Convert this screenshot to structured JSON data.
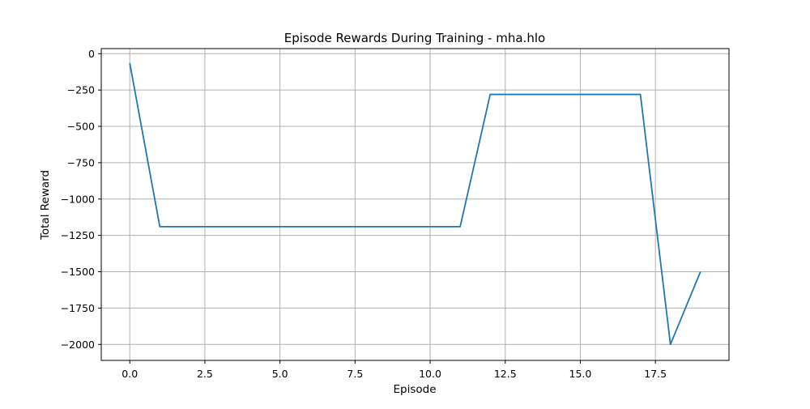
{
  "chart_data": {
    "type": "line",
    "title": "Episode Rewards During Training - mha.hlo",
    "xlabel": "Episode",
    "ylabel": "Total Reward",
    "xlim": [
      -0.95,
      19.95
    ],
    "ylim": [
      -2110,
      35
    ],
    "xticks": [
      0.0,
      2.5,
      5.0,
      7.5,
      10.0,
      12.5,
      15.0,
      17.5
    ],
    "xtick_labels": [
      "0.0",
      "2.5",
      "5.0",
      "7.5",
      "10.0",
      "12.5",
      "15.0",
      "17.5"
    ],
    "yticks": [
      0,
      -250,
      -500,
      -750,
      -1000,
      -1250,
      -1500,
      -1750,
      -2000
    ],
    "ytick_labels": [
      "0",
      "−250",
      "−500",
      "−750",
      "−1000",
      "−1250",
      "−1500",
      "−1750",
      "−2000"
    ],
    "grid": true,
    "series": [
      {
        "color": "#1f77b4",
        "x": [
          0,
          1,
          2,
          3,
          4,
          5,
          6,
          7,
          8,
          9,
          10,
          11,
          12,
          13,
          14,
          15,
          16,
          17,
          18,
          19
        ],
        "y": [
          -65,
          -1190,
          -1190,
          -1190,
          -1190,
          -1190,
          -1190,
          -1190,
          -1190,
          -1190,
          -1190,
          -1190,
          -280,
          -280,
          -280,
          -280,
          -280,
          -280,
          -2000,
          -1500
        ]
      }
    ]
  }
}
